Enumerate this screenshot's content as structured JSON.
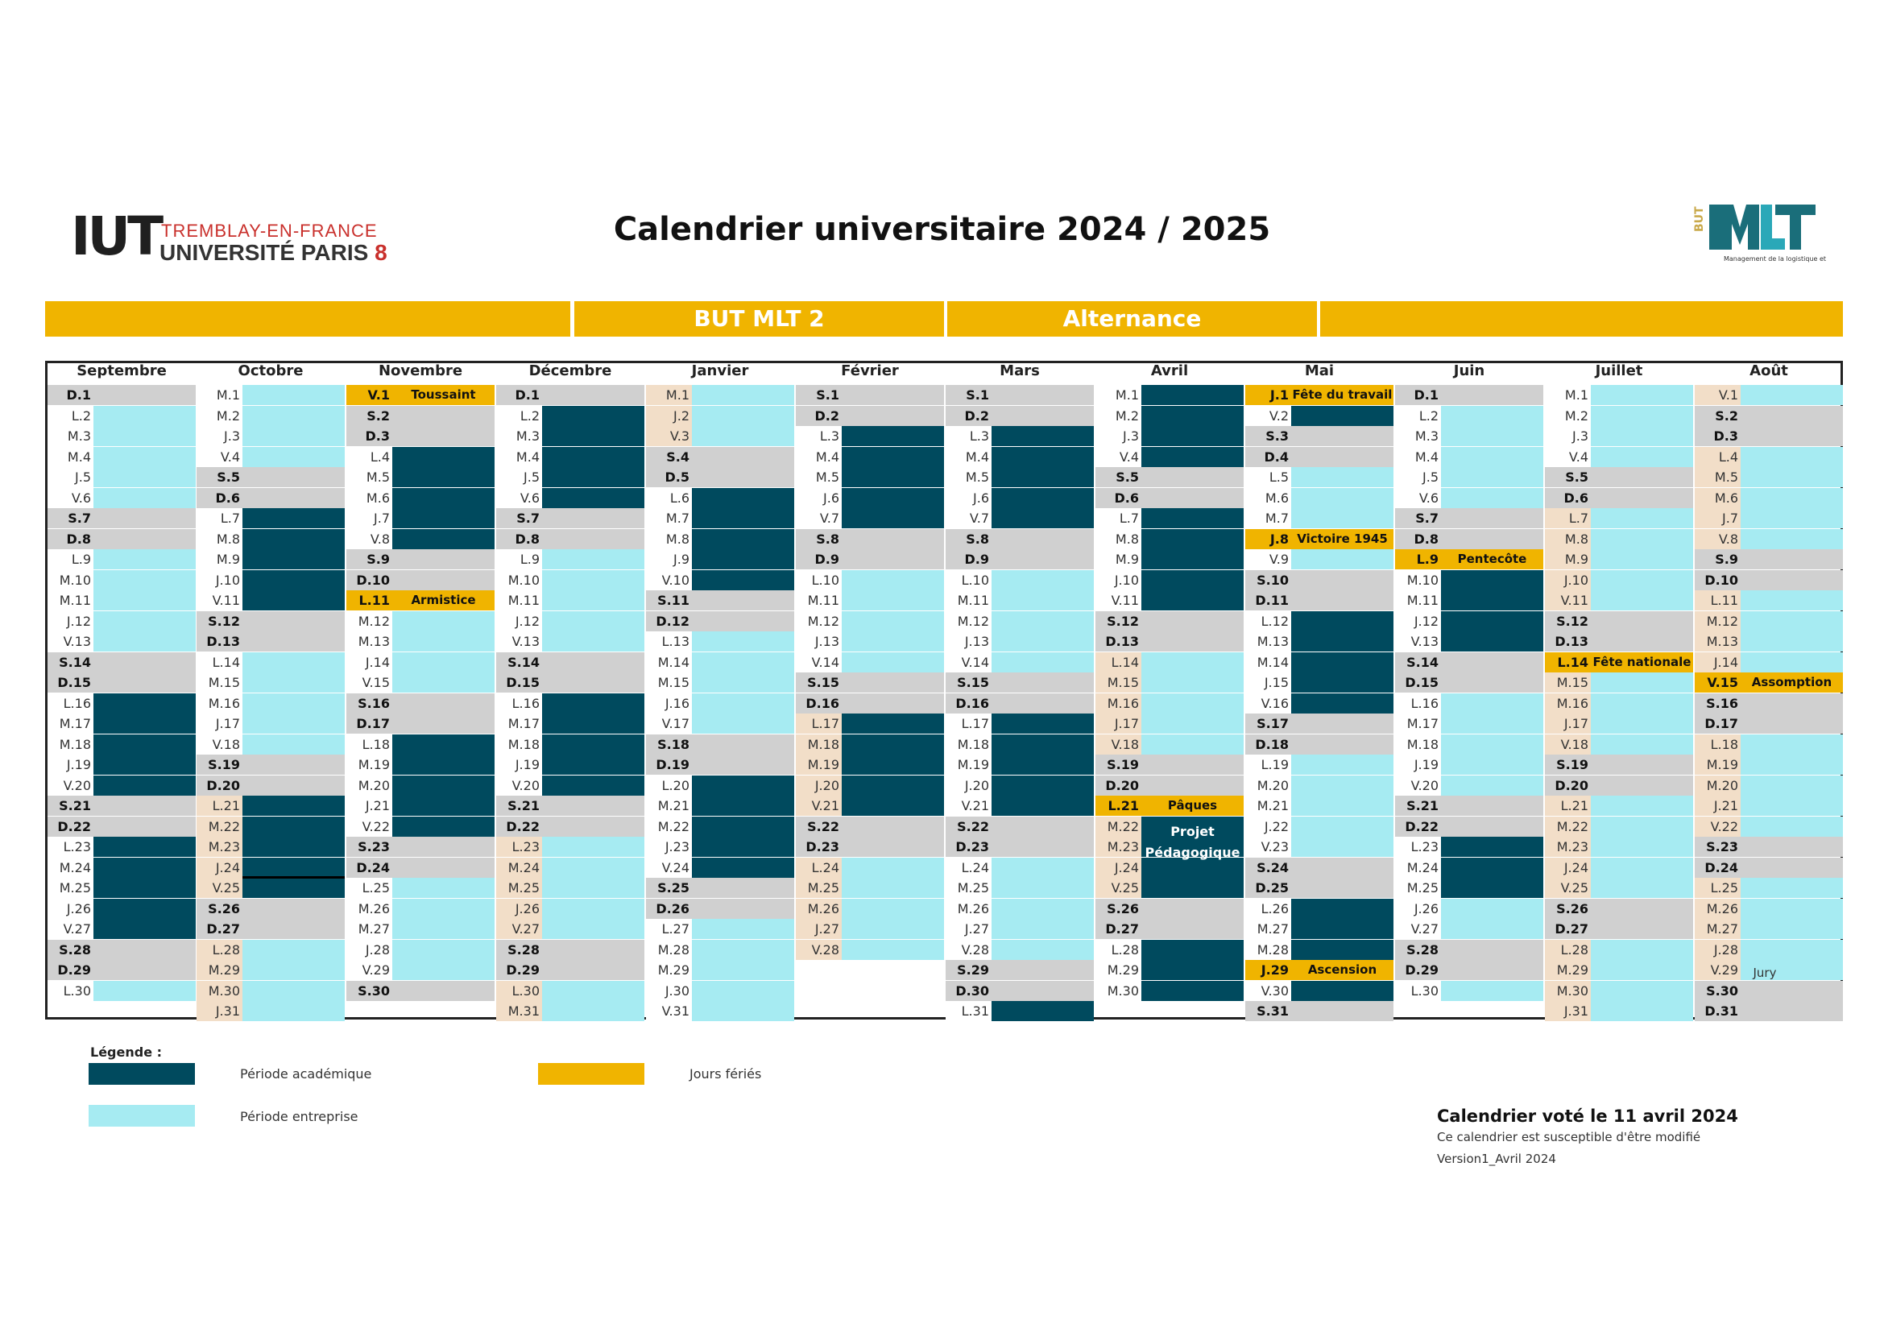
{
  "header": {
    "logo_mark": "IUT",
    "logo_line1": "TREMBLAY-EN-FRANCE",
    "logo_line2": "UNIVERSITÉ PARIS",
    "logo_line2_num": "8",
    "title": "Calendrier universitaire 2024 / 2025",
    "mlt_logo_text": "BUT MLT",
    "mlt_subtitle": "Management de la logistique et des transports"
  },
  "banner": {
    "program": "BUT MLT 2",
    "mode": "Alternance"
  },
  "colors": {
    "academic": "#004a5e",
    "enterprise": "#a6ebf2",
    "holiday": "#f0b400",
    "weekend": "#d0d0d0",
    "vacation": "#f2dec8",
    "white": "#ffffff"
  },
  "months": [
    {
      "name": "Septembre",
      "start": "D",
      "days": 30,
      "segs": [
        [
          1,
          1,
          "w"
        ],
        [
          2,
          6,
          "e"
        ],
        [
          7,
          8,
          "w"
        ],
        [
          9,
          13,
          "e"
        ],
        [
          14,
          15,
          "w"
        ],
        [
          16,
          20,
          "a"
        ],
        [
          21,
          22,
          "w"
        ],
        [
          23,
          27,
          "a"
        ],
        [
          28,
          29,
          "w"
        ],
        [
          30,
          30,
          "e"
        ]
      ],
      "lab": [
        [
          1,
          30,
          "x"
        ]
      ],
      "events": []
    },
    {
      "name": "Octobre",
      "start": "M",
      "days": 31,
      "segs": [
        [
          1,
          4,
          "e"
        ],
        [
          5,
          6,
          "w"
        ],
        [
          7,
          11,
          "a"
        ],
        [
          12,
          13,
          "w"
        ],
        [
          14,
          18,
          "e"
        ],
        [
          19,
          20,
          "w"
        ],
        [
          21,
          24,
          "a"
        ],
        [
          25,
          25,
          "a"
        ],
        [
          26,
          27,
          "w"
        ],
        [
          28,
          31,
          "e"
        ]
      ],
      "lab": [
        [
          21,
          25,
          "v"
        ],
        [
          28,
          31,
          "v"
        ]
      ],
      "events": []
    },
    {
      "name": "Novembre",
      "start": "V",
      "days": 30,
      "segs": [
        [
          1,
          1,
          "h"
        ],
        [
          2,
          3,
          "w"
        ],
        [
          4,
          8,
          "a"
        ],
        [
          9,
          10,
          "w"
        ],
        [
          11,
          11,
          "h"
        ],
        [
          12,
          15,
          "e"
        ],
        [
          16,
          17,
          "w"
        ],
        [
          18,
          22,
          "a"
        ],
        [
          23,
          24,
          "w"
        ],
        [
          25,
          29,
          "e"
        ],
        [
          30,
          30,
          "w"
        ]
      ],
      "lab": [
        [
          1,
          30,
          "x"
        ]
      ],
      "events": [
        [
          1,
          "Toussaint"
        ],
        [
          11,
          "Armistice"
        ]
      ]
    },
    {
      "name": "Décembre",
      "start": "D",
      "days": 31,
      "segs": [
        [
          1,
          1,
          "w"
        ],
        [
          2,
          6,
          "a"
        ],
        [
          7,
          8,
          "w"
        ],
        [
          9,
          13,
          "e"
        ],
        [
          14,
          15,
          "w"
        ],
        [
          16,
          20,
          "a"
        ],
        [
          21,
          22,
          "w"
        ],
        [
          23,
          27,
          "e"
        ],
        [
          28,
          29,
          "w"
        ],
        [
          30,
          31,
          "e"
        ]
      ],
      "lab": [
        [
          23,
          27,
          "v"
        ],
        [
          30,
          31,
          "v"
        ]
      ],
      "events": []
    },
    {
      "name": "Janvier",
      "start": "M",
      "days": 31,
      "segs": [
        [
          1,
          3,
          "e"
        ],
        [
          4,
          5,
          "w"
        ],
        [
          6,
          10,
          "a"
        ],
        [
          11,
          12,
          "w"
        ],
        [
          13,
          17,
          "e"
        ],
        [
          18,
          19,
          "w"
        ],
        [
          20,
          24,
          "a"
        ],
        [
          25,
          26,
          "w"
        ],
        [
          27,
          31,
          "e"
        ]
      ],
      "lab": [
        [
          1,
          3,
          "v"
        ]
      ],
      "events": []
    },
    {
      "name": "Février",
      "start": "S",
      "days": 28,
      "segs": [
        [
          1,
          2,
          "w"
        ],
        [
          3,
          7,
          "a"
        ],
        [
          8,
          9,
          "w"
        ],
        [
          10,
          14,
          "e"
        ],
        [
          15,
          16,
          "w"
        ],
        [
          17,
          21,
          "a"
        ],
        [
          22,
          23,
          "w"
        ],
        [
          24,
          28,
          "e"
        ]
      ],
      "lab": [
        [
          17,
          21,
          "v"
        ],
        [
          24,
          28,
          "v"
        ]
      ],
      "events": []
    },
    {
      "name": "Mars",
      "start": "S",
      "days": 31,
      "segs": [
        [
          1,
          2,
          "w"
        ],
        [
          3,
          7,
          "a"
        ],
        [
          8,
          9,
          "w"
        ],
        [
          10,
          14,
          "e"
        ],
        [
          15,
          16,
          "w"
        ],
        [
          17,
          21,
          "a"
        ],
        [
          22,
          23,
          "w"
        ],
        [
          24,
          28,
          "e"
        ],
        [
          29,
          30,
          "w"
        ],
        [
          31,
          31,
          "a"
        ]
      ],
      "lab": [
        [
          1,
          31,
          "x"
        ]
      ],
      "events": []
    },
    {
      "name": "Avril",
      "start": "M",
      "days": 30,
      "segs": [
        [
          1,
          4,
          "a"
        ],
        [
          5,
          6,
          "w"
        ],
        [
          7,
          11,
          "a"
        ],
        [
          12,
          13,
          "w"
        ],
        [
          14,
          18,
          "e"
        ],
        [
          19,
          20,
          "w"
        ],
        [
          21,
          21,
          "h"
        ],
        [
          22,
          25,
          "a"
        ],
        [
          26,
          27,
          "w"
        ],
        [
          28,
          30,
          "a"
        ]
      ],
      "lab": [
        [
          14,
          18,
          "v"
        ],
        [
          22,
          25,
          "v"
        ]
      ],
      "events": [
        [
          21,
          "Pâques"
        ]
      ]
    },
    {
      "name": "Mai",
      "start": "J",
      "days": 31,
      "segs": [
        [
          1,
          1,
          "h"
        ],
        [
          2,
          2,
          "a"
        ],
        [
          3,
          4,
          "w"
        ],
        [
          5,
          7,
          "e"
        ],
        [
          8,
          8,
          "h"
        ],
        [
          9,
          9,
          "e"
        ],
        [
          10,
          11,
          "w"
        ],
        [
          12,
          16,
          "a"
        ],
        [
          17,
          18,
          "w"
        ],
        [
          19,
          23,
          "e"
        ],
        [
          24,
          25,
          "w"
        ],
        [
          26,
          28,
          "a"
        ],
        [
          29,
          29,
          "h"
        ],
        [
          30,
          30,
          "a"
        ],
        [
          31,
          31,
          "w"
        ]
      ],
      "lab": [
        [
          1,
          31,
          "x"
        ]
      ],
      "events": [
        [
          1,
          "Fête du travail"
        ],
        [
          8,
          "Victoire 1945"
        ],
        [
          29,
          "Ascension"
        ]
      ]
    },
    {
      "name": "Juin",
      "start": "D",
      "days": 30,
      "segs": [
        [
          1,
          1,
          "w"
        ],
        [
          2,
          6,
          "e"
        ],
        [
          7,
          8,
          "w"
        ],
        [
          9,
          9,
          "h"
        ],
        [
          10,
          13,
          "a"
        ],
        [
          14,
          15,
          "w"
        ],
        [
          16,
          20,
          "e"
        ],
        [
          21,
          22,
          "w"
        ],
        [
          23,
          25,
          "a"
        ],
        [
          26,
          27,
          "e"
        ],
        [
          28,
          29,
          "w"
        ],
        [
          30,
          30,
          "e"
        ]
      ],
      "lab": [
        [
          1,
          30,
          "x"
        ]
      ],
      "events": [
        [
          9,
          "Pentecôte"
        ]
      ]
    },
    {
      "name": "Juillet",
      "start": "M",
      "days": 31,
      "segs": [
        [
          1,
          4,
          "e"
        ],
        [
          5,
          6,
          "w"
        ],
        [
          7,
          11,
          "e"
        ],
        [
          12,
          13,
          "w"
        ],
        [
          14,
          14,
          "h"
        ],
        [
          15,
          18,
          "e"
        ],
        [
          19,
          20,
          "w"
        ],
        [
          21,
          25,
          "e"
        ],
        [
          26,
          27,
          "w"
        ],
        [
          28,
          31,
          "e"
        ]
      ],
      "lab": [
        [
          7,
          11,
          "v"
        ],
        [
          15,
          18,
          "v"
        ],
        [
          21,
          25,
          "v"
        ],
        [
          28,
          31,
          "v"
        ]
      ],
      "events": [
        [
          14,
          "Fête nationale"
        ]
      ]
    },
    {
      "name": "Août",
      "start": "V",
      "days": 31,
      "segs": [
        [
          1,
          1,
          "e"
        ],
        [
          2,
          3,
          "w"
        ],
        [
          4,
          8,
          "e"
        ],
        [
          9,
          10,
          "w"
        ],
        [
          11,
          14,
          "e"
        ],
        [
          15,
          15,
          "h"
        ],
        [
          16,
          17,
          "w"
        ],
        [
          18,
          22,
          "e"
        ],
        [
          23,
          24,
          "w"
        ],
        [
          25,
          29,
          "e"
        ],
        [
          30,
          31,
          "w"
        ]
      ],
      "lab": [
        [
          1,
          29,
          "v"
        ]
      ],
      "events": [
        [
          15,
          "Assomption"
        ]
      ]
    }
  ],
  "overlays": {
    "projet_line1": "Projet",
    "projet_line2": "Pédagogique",
    "jury": "Jury"
  },
  "legend": {
    "title": "Légende :",
    "academic": "Période académique",
    "enterprise": "Période entreprise",
    "holiday": "Jours fériés"
  },
  "footer": {
    "vote": "Calendrier voté le 11 avril 2024",
    "note": "Ce calendrier est susceptible d'être modifié",
    "version": "Version1_Avril 2024"
  }
}
